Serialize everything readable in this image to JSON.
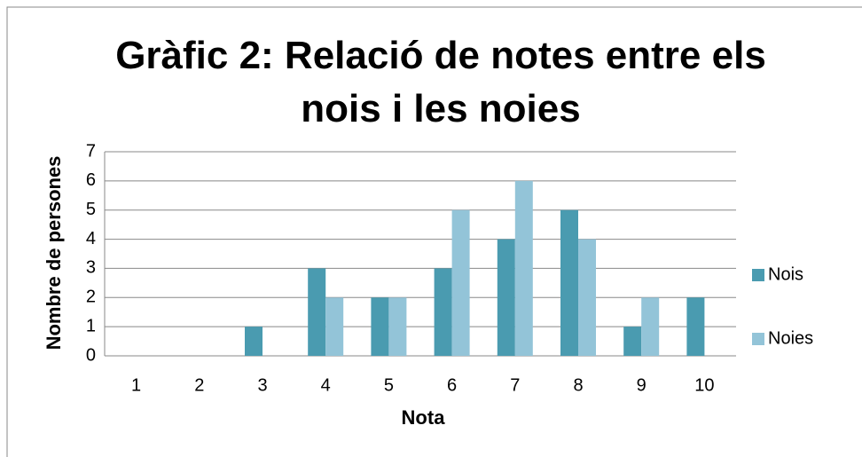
{
  "chart_data": {
    "type": "bar",
    "title": "Gràfic 2: Relació de notes entre els nois i les noies",
    "x_label": "Nota",
    "y_label": "Nombre de persones",
    "categories": [
      "1",
      "2",
      "3",
      "4",
      "5",
      "6",
      "7",
      "8",
      "9",
      "10"
    ],
    "series": [
      {
        "name": "Nois",
        "color": "#4a9bb0",
        "values": [
          0,
          0,
          1,
          3,
          2,
          3,
          4,
          5,
          1,
          2
        ]
      },
      {
        "name": "Noies",
        "color": "#93c4d8",
        "values": [
          0,
          0,
          0,
          2,
          2,
          5,
          6,
          4,
          2,
          0
        ]
      }
    ],
    "ylim": [
      0,
      7
    ],
    "yticks": [
      0,
      1,
      2,
      3,
      4,
      5,
      6,
      7
    ],
    "grid": true,
    "legend": "right"
  }
}
